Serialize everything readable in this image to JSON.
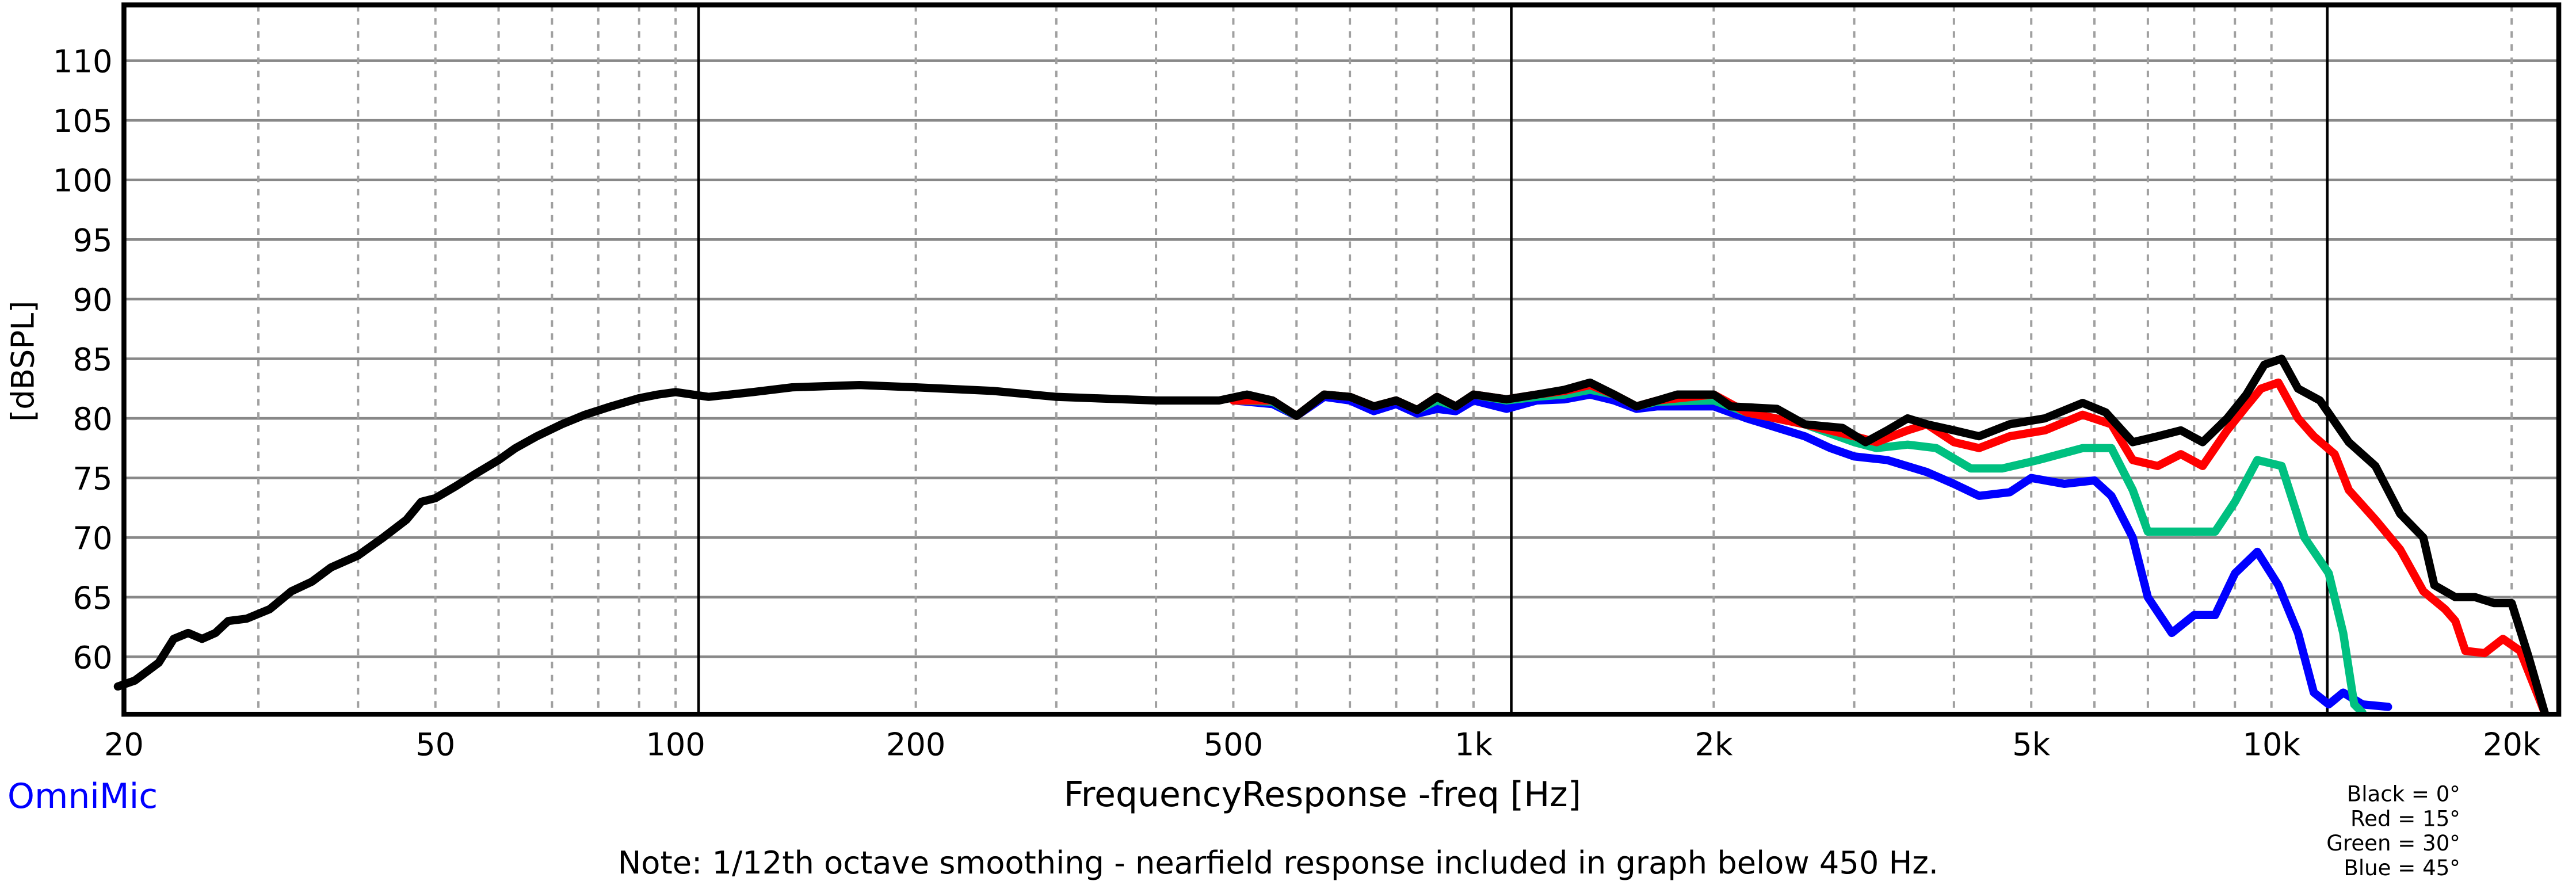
{
  "chart_data": {
    "type": "line",
    "title": "",
    "xlabel": "FrequencyResponse -freq [Hz]",
    "ylabel": "[dBSPL]",
    "xscale": "log",
    "xlim": [
      20,
      23000
    ],
    "ylim": [
      55.2,
      114.6
    ],
    "grid": true,
    "x_ticks": [
      20,
      50,
      100,
      200,
      500,
      1000,
      2000,
      5000,
      10000,
      20000
    ],
    "x_tick_labels": [
      "20",
      "50",
      "100",
      "200",
      "500",
      "1k",
      "2k",
      "5k",
      "10k",
      "20k"
    ],
    "y_ticks": [
      60,
      65,
      70,
      75,
      80,
      85,
      90,
      95,
      100,
      105,
      110
    ],
    "y_tick_labels": [
      "60",
      "65",
      "70",
      "75",
      "80",
      "85",
      "90",
      "95",
      "100",
      "105",
      "110"
    ],
    "brand": "OmniMic",
    "note": "Note: 1/12th octave smoothing - nearfield response included in graph below 450 Hz.",
    "legend": [
      "Black = 0°",
      "Red = 15°",
      "Green = 30°",
      "Blue = 45°"
    ],
    "legend_placement": "bottom-right",
    "series": [
      {
        "name": "Blue = 45°",
        "color": "#0000ff",
        "points": [
          [
            500,
            81.5
          ],
          [
            560,
            81.2
          ],
          [
            600,
            80.2
          ],
          [
            650,
            81.8
          ],
          [
            700,
            81.5
          ],
          [
            750,
            80.6
          ],
          [
            800,
            81.2
          ],
          [
            850,
            80.4
          ],
          [
            900,
            80.8
          ],
          [
            950,
            80.6
          ],
          [
            1000,
            81.5
          ],
          [
            1100,
            80.8
          ],
          [
            1200,
            81.5
          ],
          [
            1300,
            81.6
          ],
          [
            1400,
            82
          ],
          [
            1500,
            81.5
          ],
          [
            1600,
            80.8
          ],
          [
            1700,
            81
          ],
          [
            2000,
            81
          ],
          [
            2200,
            80
          ],
          [
            2600,
            78.5
          ],
          [
            2800,
            77.5
          ],
          [
            3000,
            76.8
          ],
          [
            3300,
            76.5
          ],
          [
            3700,
            75.5
          ],
          [
            4000,
            74.5
          ],
          [
            4300,
            73.5
          ],
          [
            4700,
            73.8
          ],
          [
            5000,
            75
          ],
          [
            5500,
            74.5
          ],
          [
            6000,
            74.8
          ],
          [
            6300,
            73.5
          ],
          [
            6700,
            70
          ],
          [
            7000,
            65
          ],
          [
            7500,
            62
          ],
          [
            8000,
            63.5
          ],
          [
            8500,
            63.5
          ],
          [
            9000,
            67
          ],
          [
            9600,
            68.8
          ],
          [
            10200,
            66
          ],
          [
            10800,
            62
          ],
          [
            11300,
            57
          ],
          [
            11800,
            56
          ],
          [
            12300,
            57
          ],
          [
            13000,
            56
          ],
          [
            14000,
            55.8
          ]
        ]
      },
      {
        "name": "Green = 30°",
        "color": "#00c080",
        "points": [
          [
            500,
            81.5
          ],
          [
            560,
            81.4
          ],
          [
            600,
            80.2
          ],
          [
            650,
            82
          ],
          [
            700,
            81.8
          ],
          [
            750,
            81
          ],
          [
            800,
            81.5
          ],
          [
            850,
            80.7
          ],
          [
            900,
            81.5
          ],
          [
            950,
            81
          ],
          [
            1000,
            82
          ],
          [
            1100,
            81.5
          ],
          [
            1200,
            81.8
          ],
          [
            1300,
            82
          ],
          [
            1400,
            82.4
          ],
          [
            1500,
            82
          ],
          [
            1600,
            81
          ],
          [
            1700,
            81.4
          ],
          [
            2000,
            81.5
          ],
          [
            2200,
            80.5
          ],
          [
            2600,
            79.5
          ],
          [
            3000,
            78
          ],
          [
            3200,
            77.5
          ],
          [
            3500,
            77.8
          ],
          [
            3800,
            77.5
          ],
          [
            4200,
            75.8
          ],
          [
            4600,
            75.8
          ],
          [
            5100,
            76.5
          ],
          [
            5800,
            77.5
          ],
          [
            6300,
            77.5
          ],
          [
            6700,
            74
          ],
          [
            7000,
            70.5
          ],
          [
            7500,
            70.5
          ],
          [
            8000,
            70.5
          ],
          [
            8500,
            70.5
          ],
          [
            9000,
            73
          ],
          [
            9600,
            76.5
          ],
          [
            10300,
            76
          ],
          [
            11000,
            70
          ],
          [
            11800,
            67
          ],
          [
            12300,
            62
          ],
          [
            12700,
            56
          ],
          [
            13000,
            55.2
          ]
        ]
      },
      {
        "name": "Red = 15°",
        "color": "#ff0000",
        "points": [
          [
            500,
            81.5
          ],
          [
            560,
            81.5
          ],
          [
            600,
            80.2
          ],
          [
            650,
            82
          ],
          [
            700,
            81.8
          ],
          [
            750,
            81
          ],
          [
            800,
            81.5
          ],
          [
            850,
            80.7
          ],
          [
            900,
            81.8
          ],
          [
            950,
            81
          ],
          [
            1000,
            82
          ],
          [
            1100,
            81.6
          ],
          [
            1200,
            82
          ],
          [
            1300,
            82.3
          ],
          [
            1400,
            82.8
          ],
          [
            1500,
            82
          ],
          [
            1600,
            81
          ],
          [
            1700,
            81.5
          ],
          [
            2000,
            82
          ],
          [
            2200,
            80.5
          ],
          [
            2600,
            79.5
          ],
          [
            3000,
            78.5
          ],
          [
            3200,
            78
          ],
          [
            3500,
            79
          ],
          [
            3700,
            79.5
          ],
          [
            4000,
            78
          ],
          [
            4300,
            77.5
          ],
          [
            4700,
            78.5
          ],
          [
            5200,
            79
          ],
          [
            5800,
            80.3
          ],
          [
            6300,
            79.5
          ],
          [
            6700,
            76.5
          ],
          [
            7200,
            76
          ],
          [
            7700,
            77
          ],
          [
            8200,
            76
          ],
          [
            8800,
            79
          ],
          [
            9300,
            81
          ],
          [
            9700,
            82.5
          ],
          [
            10200,
            83
          ],
          [
            10800,
            80
          ],
          [
            11300,
            78.5
          ],
          [
            12000,
            77
          ],
          [
            12500,
            74
          ],
          [
            13500,
            71.5
          ],
          [
            14500,
            69
          ],
          [
            15500,
            65.5
          ],
          [
            16500,
            64
          ],
          [
            17000,
            63
          ],
          [
            17500,
            60.5
          ],
          [
            18500,
            60.3
          ],
          [
            19500,
            61.5
          ],
          [
            20500,
            60.5
          ],
          [
            21500,
            57
          ],
          [
            22000,
            55.2
          ]
        ]
      },
      {
        "name": "Black = 0°",
        "color": "#000000",
        "points": [
          [
            20,
            57.5
          ],
          [
            21,
            58
          ],
          [
            22.5,
            59.5
          ],
          [
            23.5,
            61.5
          ],
          [
            24.5,
            62
          ],
          [
            25.5,
            61.5
          ],
          [
            26.5,
            62
          ],
          [
            27.5,
            63
          ],
          [
            29,
            63.2
          ],
          [
            31,
            64
          ],
          [
            33,
            65.5
          ],
          [
            35,
            66.3
          ],
          [
            37,
            67.5
          ],
          [
            40,
            68.5
          ],
          [
            43,
            70
          ],
          [
            46,
            71.5
          ],
          [
            48,
            73
          ],
          [
            50,
            73.3
          ],
          [
            53,
            74.3
          ],
          [
            56,
            75.3
          ],
          [
            60,
            76.5
          ],
          [
            63,
            77.5
          ],
          [
            67,
            78.5
          ],
          [
            72,
            79.5
          ],
          [
            77,
            80.3
          ],
          [
            83,
            81
          ],
          [
            90,
            81.7
          ],
          [
            95,
            82
          ],
          [
            100,
            82.2
          ],
          [
            110,
            81.8
          ],
          [
            125,
            82.2
          ],
          [
            140,
            82.6
          ],
          [
            170,
            82.8
          ],
          [
            200,
            82.6
          ],
          [
            250,
            82.3
          ],
          [
            300,
            81.8
          ],
          [
            400,
            81.5
          ],
          [
            480,
            81.5
          ],
          [
            520,
            82
          ],
          [
            560,
            81.5
          ],
          [
            600,
            80.2
          ],
          [
            650,
            82
          ],
          [
            700,
            81.8
          ],
          [
            750,
            81
          ],
          [
            800,
            81.5
          ],
          [
            850,
            80.7
          ],
          [
            900,
            81.8
          ],
          [
            950,
            81
          ],
          [
            1000,
            82
          ],
          [
            1100,
            81.6
          ],
          [
            1200,
            82
          ],
          [
            1300,
            82.4
          ],
          [
            1400,
            83
          ],
          [
            1500,
            82
          ],
          [
            1600,
            81
          ],
          [
            1700,
            81.5
          ],
          [
            1800,
            82
          ],
          [
            2000,
            82
          ],
          [
            2100,
            81
          ],
          [
            2400,
            80.8
          ],
          [
            2600,
            79.5
          ],
          [
            2900,
            79.2
          ],
          [
            3100,
            78
          ],
          [
            3300,
            79
          ],
          [
            3500,
            80
          ],
          [
            3700,
            79.5
          ],
          [
            4000,
            79
          ],
          [
            4300,
            78.5
          ],
          [
            4700,
            79.5
          ],
          [
            5200,
            80
          ],
          [
            5800,
            81.3
          ],
          [
            6200,
            80.5
          ],
          [
            6700,
            78
          ],
          [
            7200,
            78.5
          ],
          [
            7700,
            79
          ],
          [
            8200,
            78
          ],
          [
            8800,
            80
          ],
          [
            9300,
            82
          ],
          [
            9800,
            84.5
          ],
          [
            10300,
            85
          ],
          [
            10800,
            82.5
          ],
          [
            11500,
            81.5
          ],
          [
            12500,
            78
          ],
          [
            13500,
            76
          ],
          [
            14500,
            72
          ],
          [
            15500,
            70
          ],
          [
            16000,
            66
          ],
          [
            17000,
            65
          ],
          [
            18000,
            65
          ],
          [
            19000,
            64.5
          ],
          [
            20000,
            64.5
          ],
          [
            21000,
            60
          ],
          [
            22000,
            55.2
          ]
        ]
      }
    ]
  }
}
